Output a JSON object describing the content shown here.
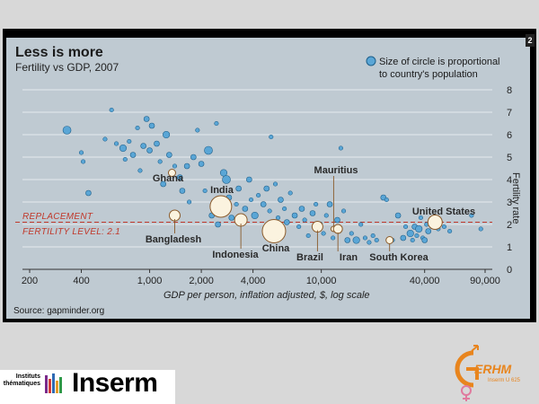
{
  "slide_number": "2",
  "chart_data": {
    "type": "scatter",
    "title": "Less is more",
    "subtitle": "Fertility vs GDP, 2007",
    "xlabel": "GDP per person, inflation adjusted, $, log scale",
    "ylabel": "Fertility rate",
    "xscale": "log",
    "xlim": [
      200,
      90000
    ],
    "ylim": [
      0,
      8
    ],
    "xticks": [
      200,
      400,
      1000,
      2000,
      4000,
      10000,
      40000,
      90000
    ],
    "xtick_labels": [
      "200",
      "400",
      "1,000",
      "2,000",
      "4,000",
      "10,000",
      "40,000",
      "90,000"
    ],
    "yticks": [
      0,
      1,
      2,
      3,
      4,
      5,
      6,
      7,
      8
    ],
    "legend_text": [
      "Size of circle is proportional",
      "to country's population"
    ],
    "legend_position": "top-right",
    "reference_line": {
      "y": 2.1,
      "label": [
        "REPLACEMENT",
        "FERTILITY LEVEL: 2.1"
      ]
    },
    "source": "Source: gapminder.org",
    "colors": {
      "points": "#5aa6d6",
      "highlight": "#fbf3df",
      "reference": "#c0392b",
      "background": "#bfcad2"
    },
    "labeled": [
      {
        "name": "Ghana",
        "x": 1350,
        "y": 4.3
      },
      {
        "name": "India",
        "x": 2600,
        "y": 2.8
      },
      {
        "name": "Bangladesh",
        "x": 1400,
        "y": 2.4
      },
      {
        "name": "Indonesia",
        "x": 3400,
        "y": 2.2
      },
      {
        "name": "China",
        "x": 5300,
        "y": 1.7
      },
      {
        "name": "Brazil",
        "x": 9500,
        "y": 1.9
      },
      {
        "name": "Mauritius",
        "x": 11800,
        "y": 1.8
      },
      {
        "name": "Iran",
        "x": 12500,
        "y": 1.8
      },
      {
        "name": "South Korea",
        "x": 25000,
        "y": 1.3
      },
      {
        "name": "United States",
        "x": 46000,
        "y": 2.1
      }
    ],
    "points": [
      {
        "x": 330,
        "y": 6.2,
        "s": 6
      },
      {
        "x": 400,
        "y": 5.2,
        "s": 3
      },
      {
        "x": 410,
        "y": 4.8,
        "s": 3
      },
      {
        "x": 440,
        "y": 3.4,
        "s": 4
      },
      {
        "x": 550,
        "y": 5.8,
        "s": 3
      },
      {
        "x": 600,
        "y": 7.1,
        "s": 3
      },
      {
        "x": 640,
        "y": 5.6,
        "s": 3
      },
      {
        "x": 700,
        "y": 5.4,
        "s": 5
      },
      {
        "x": 720,
        "y": 4.9,
        "s": 3
      },
      {
        "x": 760,
        "y": 5.7,
        "s": 3
      },
      {
        "x": 800,
        "y": 5.1,
        "s": 4
      },
      {
        "x": 850,
        "y": 6.3,
        "s": 3
      },
      {
        "x": 880,
        "y": 4.4,
        "s": 3
      },
      {
        "x": 920,
        "y": 5.5,
        "s": 4
      },
      {
        "x": 960,
        "y": 6.7,
        "s": 4
      },
      {
        "x": 1000,
        "y": 5.3,
        "s": 4
      },
      {
        "x": 1030,
        "y": 6.4,
        "s": 4
      },
      {
        "x": 1100,
        "y": 5.6,
        "s": 4
      },
      {
        "x": 1150,
        "y": 4.8,
        "s": 3
      },
      {
        "x": 1200,
        "y": 3.8,
        "s": 4
      },
      {
        "x": 1250,
        "y": 6.0,
        "s": 5
      },
      {
        "x": 1300,
        "y": 5.1,
        "s": 4
      },
      {
        "x": 1400,
        "y": 4.6,
        "s": 3
      },
      {
        "x": 1500,
        "y": 4.1,
        "s": 4
      },
      {
        "x": 1550,
        "y": 3.5,
        "s": 4
      },
      {
        "x": 1650,
        "y": 4.6,
        "s": 4
      },
      {
        "x": 1700,
        "y": 3.0,
        "s": 3
      },
      {
        "x": 1800,
        "y": 5.0,
        "s": 4
      },
      {
        "x": 1900,
        "y": 6.2,
        "s": 3
      },
      {
        "x": 2000,
        "y": 4.7,
        "s": 4
      },
      {
        "x": 2100,
        "y": 3.5,
        "s": 3
      },
      {
        "x": 2200,
        "y": 5.3,
        "s": 6
      },
      {
        "x": 2300,
        "y": 2.4,
        "s": 4
      },
      {
        "x": 2450,
        "y": 6.5,
        "s": 3
      },
      {
        "x": 2500,
        "y": 2.0,
        "s": 4
      },
      {
        "x": 2700,
        "y": 4.3,
        "s": 5
      },
      {
        "x": 2800,
        "y": 4.0,
        "s": 6
      },
      {
        "x": 2900,
        "y": 3.2,
        "s": 4
      },
      {
        "x": 3000,
        "y": 2.3,
        "s": 4
      },
      {
        "x": 3200,
        "y": 2.9,
        "s": 3
      },
      {
        "x": 3300,
        "y": 3.6,
        "s": 4
      },
      {
        "x": 3600,
        "y": 2.7,
        "s": 4
      },
      {
        "x": 3800,
        "y": 4.0,
        "s": 4
      },
      {
        "x": 3900,
        "y": 3.1,
        "s": 3
      },
      {
        "x": 4100,
        "y": 2.4,
        "s": 5
      },
      {
        "x": 4300,
        "y": 3.3,
        "s": 3
      },
      {
        "x": 4600,
        "y": 2.9,
        "s": 4
      },
      {
        "x": 4800,
        "y": 3.6,
        "s": 4
      },
      {
        "x": 5000,
        "y": 2.6,
        "s": 3
      },
      {
        "x": 5100,
        "y": 5.9,
        "s": 3
      },
      {
        "x": 5400,
        "y": 3.8,
        "s": 3
      },
      {
        "x": 5600,
        "y": 2.3,
        "s": 3
      },
      {
        "x": 5800,
        "y": 3.1,
        "s": 4
      },
      {
        "x": 6100,
        "y": 2.7,
        "s": 3
      },
      {
        "x": 6300,
        "y": 2.1,
        "s": 4
      },
      {
        "x": 6600,
        "y": 3.4,
        "s": 3
      },
      {
        "x": 7000,
        "y": 2.4,
        "s": 4
      },
      {
        "x": 7400,
        "y": 1.9,
        "s": 3
      },
      {
        "x": 7700,
        "y": 2.7,
        "s": 4
      },
      {
        "x": 8000,
        "y": 2.2,
        "s": 3
      },
      {
        "x": 8400,
        "y": 1.5,
        "s": 3
      },
      {
        "x": 8900,
        "y": 2.5,
        "s": 4
      },
      {
        "x": 9300,
        "y": 2.9,
        "s": 3
      },
      {
        "x": 9800,
        "y": 2.0,
        "s": 4
      },
      {
        "x": 10300,
        "y": 1.6,
        "s": 3
      },
      {
        "x": 10700,
        "y": 2.4,
        "s": 3
      },
      {
        "x": 11200,
        "y": 2.9,
        "s": 4
      },
      {
        "x": 11700,
        "y": 1.4,
        "s": 3
      },
      {
        "x": 12400,
        "y": 2.2,
        "s": 4
      },
      {
        "x": 13000,
        "y": 5.4,
        "s": 3
      },
      {
        "x": 13500,
        "y": 2.6,
        "s": 3
      },
      {
        "x": 14200,
        "y": 1.3,
        "s": 4
      },
      {
        "x": 15000,
        "y": 1.6,
        "s": 3
      },
      {
        "x": 16000,
        "y": 1.3,
        "s": 5
      },
      {
        "x": 17000,
        "y": 2.0,
        "s": 3
      },
      {
        "x": 18000,
        "y": 1.4,
        "s": 3
      },
      {
        "x": 19000,
        "y": 1.2,
        "s": 3
      },
      {
        "x": 20000,
        "y": 1.5,
        "s": 3
      },
      {
        "x": 21000,
        "y": 1.3,
        "s": 3
      },
      {
        "x": 23000,
        "y": 3.2,
        "s": 4
      },
      {
        "x": 24000,
        "y": 3.1,
        "s": 3
      },
      {
        "x": 26000,
        "y": 1.3,
        "s": 3
      },
      {
        "x": 28000,
        "y": 2.4,
        "s": 4
      },
      {
        "x": 30000,
        "y": 1.4,
        "s": 4
      },
      {
        "x": 31000,
        "y": 1.9,
        "s": 3
      },
      {
        "x": 33000,
        "y": 1.6,
        "s": 5
      },
      {
        "x": 34000,
        "y": 1.3,
        "s": 3
      },
      {
        "x": 35000,
        "y": 1.9,
        "s": 4
      },
      {
        "x": 36000,
        "y": 1.5,
        "s": 3
      },
      {
        "x": 37000,
        "y": 1.8,
        "s": 5
      },
      {
        "x": 38000,
        "y": 2.3,
        "s": 3
      },
      {
        "x": 39000,
        "y": 1.4,
        "s": 3
      },
      {
        "x": 40000,
        "y": 1.3,
        "s": 4
      },
      {
        "x": 41000,
        "y": 2.0,
        "s": 3
      },
      {
        "x": 42000,
        "y": 1.7,
        "s": 4
      },
      {
        "x": 44000,
        "y": 1.9,
        "s": 3
      },
      {
        "x": 48000,
        "y": 1.8,
        "s": 3
      },
      {
        "x": 52000,
        "y": 1.9,
        "s": 3
      },
      {
        "x": 56000,
        "y": 1.7,
        "s": 3
      },
      {
        "x": 75000,
        "y": 2.4,
        "s": 3
      },
      {
        "x": 85000,
        "y": 1.8,
        "s": 3
      }
    ],
    "highlights": [
      {
        "name": "Ghana",
        "x": 1350,
        "y": 4.3,
        "s": 4
      },
      {
        "name": "India",
        "x": 2600,
        "y": 2.8,
        "s": 12
      },
      {
        "name": "Bangladesh",
        "x": 1400,
        "y": 2.4,
        "s": 6
      },
      {
        "name": "Indonesia",
        "x": 3400,
        "y": 2.2,
        "s": 7
      },
      {
        "name": "China",
        "x": 5300,
        "y": 1.7,
        "s": 13
      },
      {
        "name": "Brazil",
        "x": 9500,
        "y": 1.9,
        "s": 6
      },
      {
        "name": "Mauritius",
        "x": 11800,
        "y": 1.8,
        "s": 3
      },
      {
        "name": "Iran",
        "x": 12500,
        "y": 1.8,
        "s": 5
      },
      {
        "name": "South Korea",
        "x": 25000,
        "y": 1.3,
        "s": 4
      },
      {
        "name": "United States",
        "x": 46000,
        "y": 2.1,
        "s": 8
      }
    ]
  },
  "logos": {
    "left_institute": [
      "Instituts",
      "thématiques"
    ],
    "left_brand": "Inserm",
    "right_brand": "ERHM",
    "right_unit": "Inserm U 625"
  }
}
